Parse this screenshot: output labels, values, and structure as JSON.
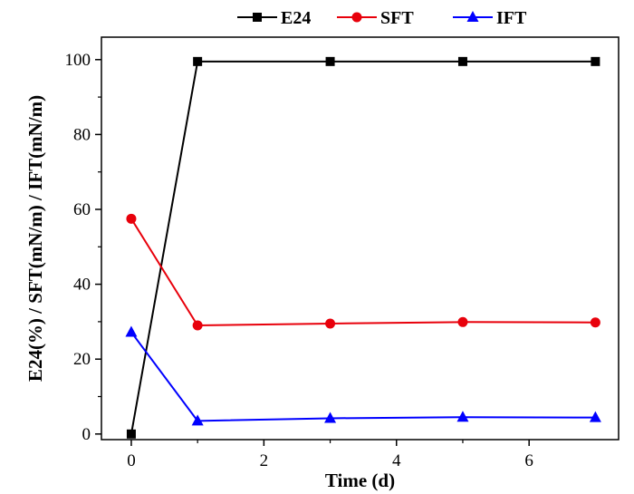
{
  "chart_data": {
    "type": "line",
    "xlabel": "Time (d)",
    "ylabel": "E24(%) / SFT(mN/m) / IFT(mN/m)",
    "xlim": [
      -0.45,
      7.35
    ],
    "ylim": [
      -1.5,
      106
    ],
    "xticks": [
      0,
      2,
      4,
      6
    ],
    "yticks": [
      0,
      20,
      40,
      60,
      80,
      100
    ],
    "x": [
      0,
      1,
      3,
      5,
      7
    ],
    "series": [
      {
        "name": "E24",
        "values": [
          0,
          99.5,
          99.5,
          99.5,
          99.5
        ],
        "color": "#000000",
        "marker": "square"
      },
      {
        "name": "SFT",
        "values": [
          57.5,
          29.0,
          29.5,
          29.9,
          29.8
        ],
        "color": "#e8000b",
        "marker": "circle"
      },
      {
        "name": "IFT",
        "values": [
          27.2,
          3.5,
          4.2,
          4.5,
          4.4
        ],
        "color": "#0000ff",
        "marker": "triangle"
      }
    ],
    "legend_position": "top",
    "grid": false
  }
}
